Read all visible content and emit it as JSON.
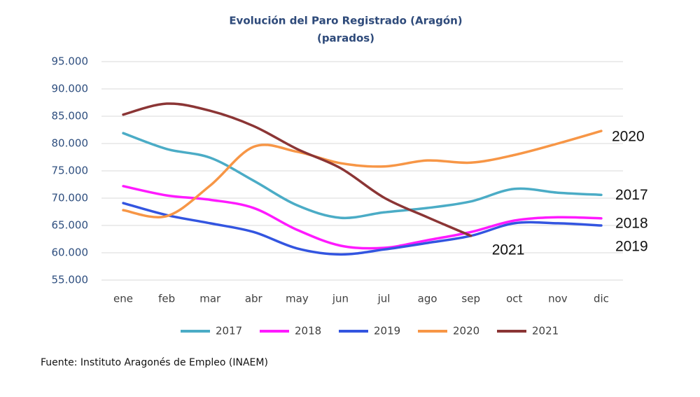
{
  "chart_data": {
    "type": "line",
    "title": "Evolución del Paro Registrado (Aragón)",
    "subtitle": "(parados)",
    "categories": [
      "ene",
      "feb",
      "mar",
      "abr",
      "may",
      "jun",
      "jul",
      "ago",
      "sep",
      "oct",
      "nov",
      "dic"
    ],
    "series": [
      {
        "name": "2017",
        "color": "#4bacc6",
        "values": [
          81900,
          79000,
          77400,
          73200,
          68700,
          66400,
          67400,
          68200,
          69400,
          71700,
          71000,
          70600
        ]
      },
      {
        "name": "2018",
        "color": "#ff1aff",
        "values": [
          72200,
          70500,
          69700,
          68200,
          64200,
          61300,
          60900,
          62300,
          63800,
          65900,
          66500,
          66300
        ]
      },
      {
        "name": "2019",
        "color": "#3355e0",
        "values": [
          69100,
          66900,
          65400,
          63800,
          60800,
          59700,
          60600,
          61800,
          63100,
          65400,
          65400,
          65000
        ]
      },
      {
        "name": "2020",
        "color": "#f79646",
        "values": [
          67800,
          66700,
          72300,
          79400,
          78500,
          76400,
          75800,
          76900,
          76500,
          77900,
          80000,
          82300
        ]
      },
      {
        "name": "2021",
        "color": "#8b3535",
        "values": [
          85300,
          87300,
          86000,
          83200,
          79000,
          75500,
          70100,
          66500,
          63100,
          null,
          null,
          null
        ]
      }
    ],
    "ylim": [
      55000,
      95000
    ],
    "yticks": [
      {
        "value": 55000,
        "label": "55.000"
      },
      {
        "value": 60000,
        "label": "60.000"
      },
      {
        "value": 65000,
        "label": "65.000"
      },
      {
        "value": 70000,
        "label": "70.000"
      },
      {
        "value": 75000,
        "label": "75.000"
      },
      {
        "value": 80000,
        "label": "80.000"
      },
      {
        "value": 85000,
        "label": "85.000"
      },
      {
        "value": 90000,
        "label": "90.000"
      },
      {
        "value": 95000,
        "label": "95.000"
      }
    ],
    "grid": true,
    "legend": "bottom",
    "source": "Fuente: Instituto Aragonés de Empleo (INAEM)"
  }
}
